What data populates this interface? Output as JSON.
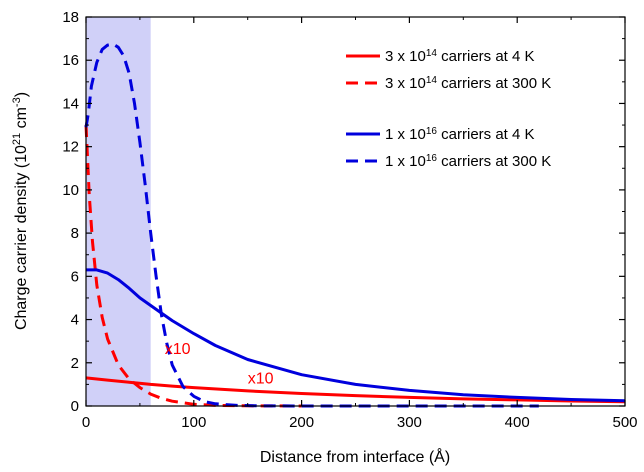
{
  "chart_data": {
    "type": "line",
    "xlabel": "Distance from interface (Å)",
    "ylabel_parts": [
      "Charge carrier density (10",
      "21",
      " cm",
      "-3",
      ")"
    ],
    "xlim": [
      0,
      500
    ],
    "ylim": [
      0,
      18
    ],
    "xticks": [
      0,
      100,
      200,
      300,
      400,
      500
    ],
    "yticks": [
      0,
      2,
      4,
      6,
      8,
      10,
      12,
      14,
      16,
      18
    ],
    "grid": false,
    "legend_position": "top-right",
    "shaded_region": {
      "x": [
        0,
        60
      ],
      "color": "#d0d0f8"
    },
    "series": [
      {
        "name_parts": [
          "3 x 10",
          "14",
          " carriers at 4 K"
        ],
        "color": "#ff0000",
        "dash": "solid",
        "x": [
          0,
          20,
          40,
          60,
          80,
          100,
          150,
          200,
          250,
          300,
          350,
          400,
          450,
          500
        ],
        "y": [
          1.3,
          1.2,
          1.1,
          1.0,
          0.92,
          0.85,
          0.7,
          0.58,
          0.48,
          0.4,
          0.33,
          0.28,
          0.23,
          0.2
        ]
      },
      {
        "name_parts": [
          "3 x 10",
          "14",
          " carriers at 300 K"
        ],
        "color": "#ff0000",
        "dash": "dashed",
        "x": [
          0,
          3,
          6,
          10,
          15,
          20,
          30,
          40,
          50,
          60,
          70,
          80,
          100,
          120,
          150,
          200
        ],
        "y": [
          13.0,
          9.8,
          7.6,
          5.6,
          4.1,
          3.1,
          1.9,
          1.25,
          0.85,
          0.55,
          0.35,
          0.22,
          0.08,
          0.03,
          0.01,
          0.0
        ]
      },
      {
        "name_parts": [
          "1 x 10",
          "16",
          " carriers at 4 K"
        ],
        "color": "#0000dd",
        "dash": "solid",
        "x": [
          0,
          10,
          20,
          30,
          40,
          50,
          60,
          70,
          80,
          100,
          120,
          150,
          200,
          250,
          300,
          350,
          400,
          450,
          500
        ],
        "y": [
          6.3,
          6.3,
          6.15,
          5.85,
          5.45,
          5.0,
          4.65,
          4.3,
          3.95,
          3.35,
          2.8,
          2.15,
          1.45,
          1.0,
          0.72,
          0.52,
          0.4,
          0.3,
          0.24
        ]
      },
      {
        "name_parts": [
          "1 x 10",
          "16",
          " carriers at 300 K"
        ],
        "color": "#0000dd",
        "dash": "dashed",
        "x": [
          0,
          2,
          5,
          10,
          15,
          20,
          25,
          30,
          35,
          40,
          45,
          50,
          55,
          60,
          65,
          70,
          75,
          80,
          90,
          100,
          110,
          120,
          140,
          160,
          200,
          250,
          300,
          420
        ],
        "y": [
          12.9,
          13.5,
          14.8,
          15.9,
          16.5,
          16.7,
          16.75,
          16.6,
          16.2,
          15.4,
          14.0,
          12.2,
          10.2,
          8.0,
          6.0,
          4.2,
          2.9,
          1.9,
          0.9,
          0.45,
          0.2,
          0.1,
          0.03,
          0.01,
          0.0,
          0.0,
          0.0,
          0.0
        ]
      }
    ],
    "annotations": [
      {
        "text": "x10",
        "x": 73,
        "y": 2.4,
        "color": "#ff0000"
      },
      {
        "text": "x10",
        "x": 150,
        "y": 1.05,
        "color": "#ff0000"
      }
    ]
  }
}
